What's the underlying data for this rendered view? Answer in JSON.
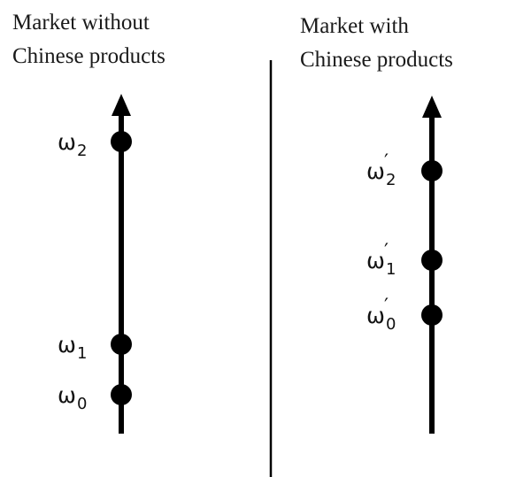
{
  "panels": {
    "left": {
      "title_line1": "Market without",
      "title_line2": "Chinese products",
      "points": [
        {
          "symbol": "ω",
          "sub": "2",
          "prime": ""
        },
        {
          "symbol": "ω",
          "sub": "1",
          "prime": ""
        },
        {
          "symbol": "ω",
          "sub": "0",
          "prime": ""
        }
      ]
    },
    "right": {
      "title_line1": "Market with",
      "title_line2": "Chinese products",
      "points": [
        {
          "symbol": "ω",
          "sub": "2",
          "prime": "′"
        },
        {
          "symbol": "ω",
          "sub": "1",
          "prime": "′"
        },
        {
          "symbol": "ω",
          "sub": "0",
          "prime": "′"
        }
      ]
    }
  },
  "colors": {
    "axis": "#000000",
    "point": "#000000",
    "divider": "#000000",
    "text": "#1a1a1a"
  }
}
